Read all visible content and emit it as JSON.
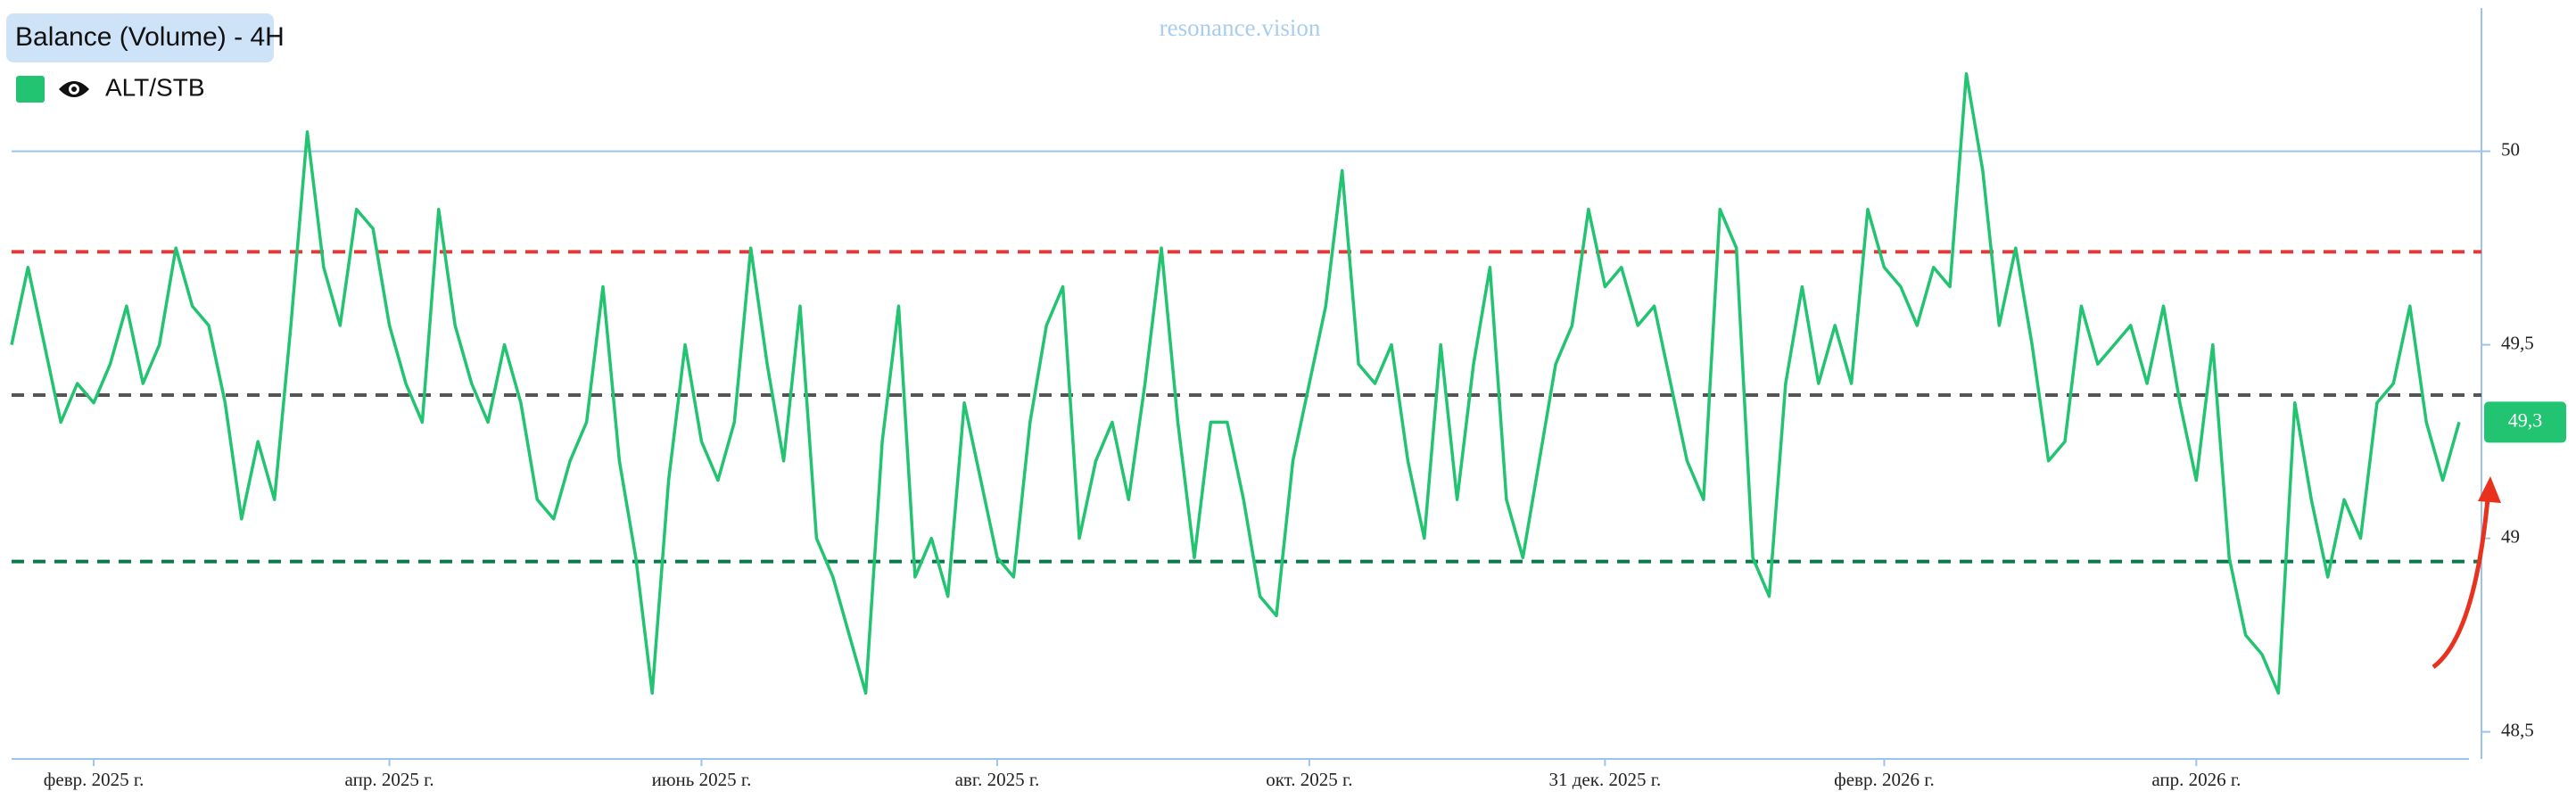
{
  "chart_data": {
    "type": "line",
    "title": "Balance (Volume) - 4H",
    "watermark": "resonance.vision",
    "series": [
      {
        "name": "ALT/STB",
        "color": "#22c371",
        "values": [
          49.5,
          49.7,
          49.5,
          49.3,
          49.4,
          49.35,
          49.45,
          49.6,
          49.4,
          49.5,
          49.75,
          49.6,
          49.55,
          49.35,
          49.05,
          49.25,
          49.1,
          49.55,
          50.05,
          49.7,
          49.55,
          49.85,
          49.8,
          49.55,
          49.4,
          49.3,
          49.85,
          49.55,
          49.4,
          49.3,
          49.5,
          49.35,
          49.1,
          49.05,
          49.2,
          49.3,
          49.65,
          49.2,
          48.95,
          48.6,
          49.15,
          49.5,
          49.25,
          49.15,
          49.3,
          49.75,
          49.45,
          49.2,
          49.6,
          49.0,
          48.9,
          48.75,
          48.6,
          49.25,
          49.6,
          48.9,
          49.0,
          48.85,
          49.35,
          49.15,
          48.95,
          48.9,
          49.3,
          49.55,
          49.65,
          49.0,
          49.2,
          49.3,
          49.1,
          49.4,
          49.75,
          49.3,
          48.95,
          49.3,
          49.3,
          49.1,
          48.85,
          48.8,
          49.2,
          49.4,
          49.6,
          49.95,
          49.45,
          49.4,
          49.5,
          49.2,
          49.0,
          49.5,
          49.1,
          49.45,
          49.7,
          49.1,
          48.95,
          49.2,
          49.45,
          49.55,
          49.85,
          49.65,
          49.7,
          49.55,
          49.6,
          49.4,
          49.2,
          49.1,
          49.85,
          49.75,
          48.95,
          48.85,
          49.4,
          49.65,
          49.4,
          49.55,
          49.4,
          49.85,
          49.7,
          49.65,
          49.55,
          49.7,
          49.65,
          50.2,
          49.95,
          49.55,
          49.75,
          49.5,
          49.2,
          49.25,
          49.6,
          49.45,
          49.5,
          49.55,
          49.4,
          49.6,
          49.35,
          49.15,
          49.5,
          48.95,
          48.75,
          48.7,
          48.6,
          49.35,
          49.1,
          48.9,
          49.1,
          49.0,
          49.35,
          49.4,
          49.6,
          49.3,
          49.15,
          49.3
        ]
      }
    ],
    "xlim": [
      0,
      149
    ],
    "xticks": [
      {
        "value": 5,
        "label": "февр. 2025 г."
      },
      {
        "value": 23,
        "label": "апр. 2025 г."
      },
      {
        "value": 42,
        "label": "июнь 2025 г."
      },
      {
        "value": 60,
        "label": "авг. 2025 г."
      },
      {
        "value": 79,
        "label": "окт. 2025 г."
      },
      {
        "value": 97,
        "label": "31 дек. 2025 г."
      },
      {
        "value": 114,
        "label": "февр. 2026 г."
      },
      {
        "value": 133,
        "label": "апр. 2026 г."
      }
    ],
    "ylim": [
      48.43,
      50.37
    ],
    "yticks": [
      {
        "value": 48.5,
        "label": "48,5"
      },
      49,
      {
        "value": 49.5,
        "label": "49,5"
      },
      50
    ],
    "reference_lines": [
      {
        "value": 50,
        "color": "#9cc3ea",
        "style": "solid"
      },
      {
        "value": 49.74,
        "color": "#e03a3a",
        "style": "dashed"
      },
      {
        "value": 49.37,
        "color": "#555555",
        "style": "dashed"
      },
      {
        "value": 48.94,
        "color": "#0b7a4b",
        "style": "dashed"
      }
    ],
    "price_label": {
      "value": 49.3,
      "label": "49,3"
    }
  }
}
